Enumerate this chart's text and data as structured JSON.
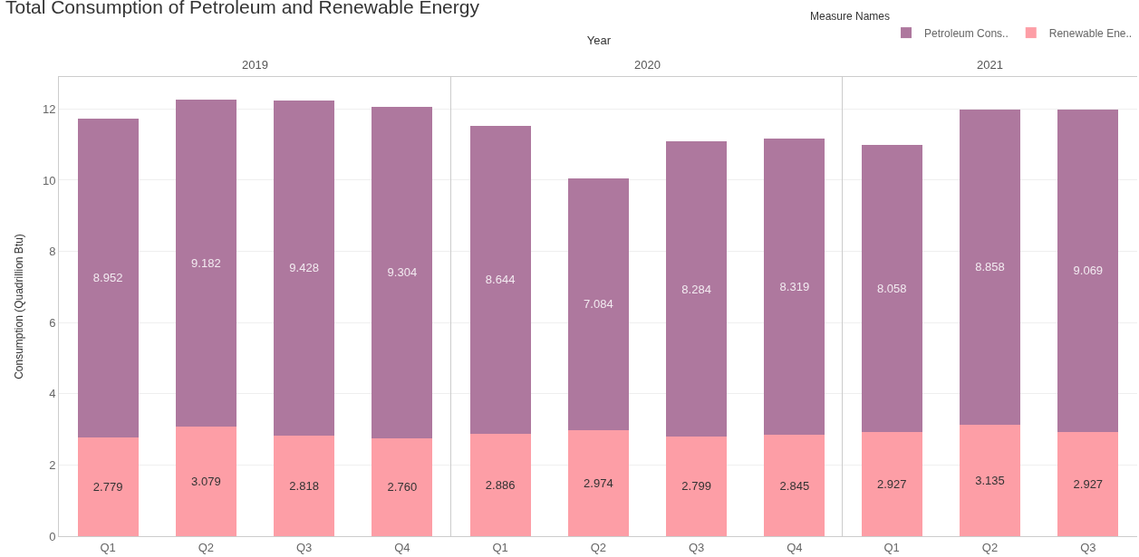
{
  "chart_data": [
    {
      "type": "bar",
      "title": "Total Consumption of Petroleum and Renewable Energy",
      "subtitle": "2019",
      "annotations": [
        "Year"
      ],
      "ylabel": "Consumption (Quadrillion Btu)",
      "categories": [
        "Q1",
        "Q2",
        "Q3",
        "Q4"
      ],
      "stacked": true,
      "grid": "y",
      "ylim": [
        0,
        12.9
      ],
      "yticks": [
        0,
        2,
        4,
        6,
        8,
        10,
        12
      ],
      "series": [
        {
          "color": "#fd9ea6",
          "values": [
            2.779,
            3.079,
            2.818,
            2.76
          ],
          "value_labels": [
            "2.779",
            "3.079",
            "2.818",
            "2.760"
          ]
        },
        {
          "color": "#ae789e",
          "values": [
            8.952,
            9.182,
            9.428,
            9.304
          ],
          "value_labels": [
            "8.952",
            "9.182",
            "9.428",
            "9.304"
          ]
        }
      ]
    },
    {
      "type": "bar",
      "subtitle": "2020",
      "categories": [
        "Q1",
        "Q2",
        "Q3",
        "Q4"
      ],
      "stacked": true,
      "data_labels": true,
      "grid": "y",
      "tick_labels": "x",
      "ylim": [
        0,
        12.9
      ],
      "yticks": [
        0,
        2,
        4,
        6,
        8,
        10,
        12
      ],
      "series": [
        {
          "color": "#fd9ea6",
          "values": [
            2.886,
            2.974,
            2.799,
            2.845
          ]
        },
        {
          "color": "#ae789e",
          "values": [
            8.644,
            7.084,
            8.284,
            8.319
          ]
        }
      ]
    },
    {
      "type": "bar",
      "subtitle": "2021",
      "categories": [
        "Q1",
        "Q2",
        "Q3"
      ],
      "stacked": true,
      "data_labels": true,
      "grid": "y",
      "tick_labels": "x",
      "ylim": [
        0,
        12.9
      ],
      "yticks": [
        0,
        2,
        4,
        6,
        8,
        10,
        12
      ],
      "legend": "top right",
      "legend_title": "Measure Names",
      "series": [
        {
          "name": "Renewable Ene..",
          "color": "#fd9ea6",
          "values": [
            2.927,
            3.135,
            2.927
          ]
        },
        {
          "name": "Petroleum Cons..",
          "color": "#ae789e",
          "values": [
            8.058,
            8.858,
            9.069
          ]
        }
      ]
    }
  ]
}
